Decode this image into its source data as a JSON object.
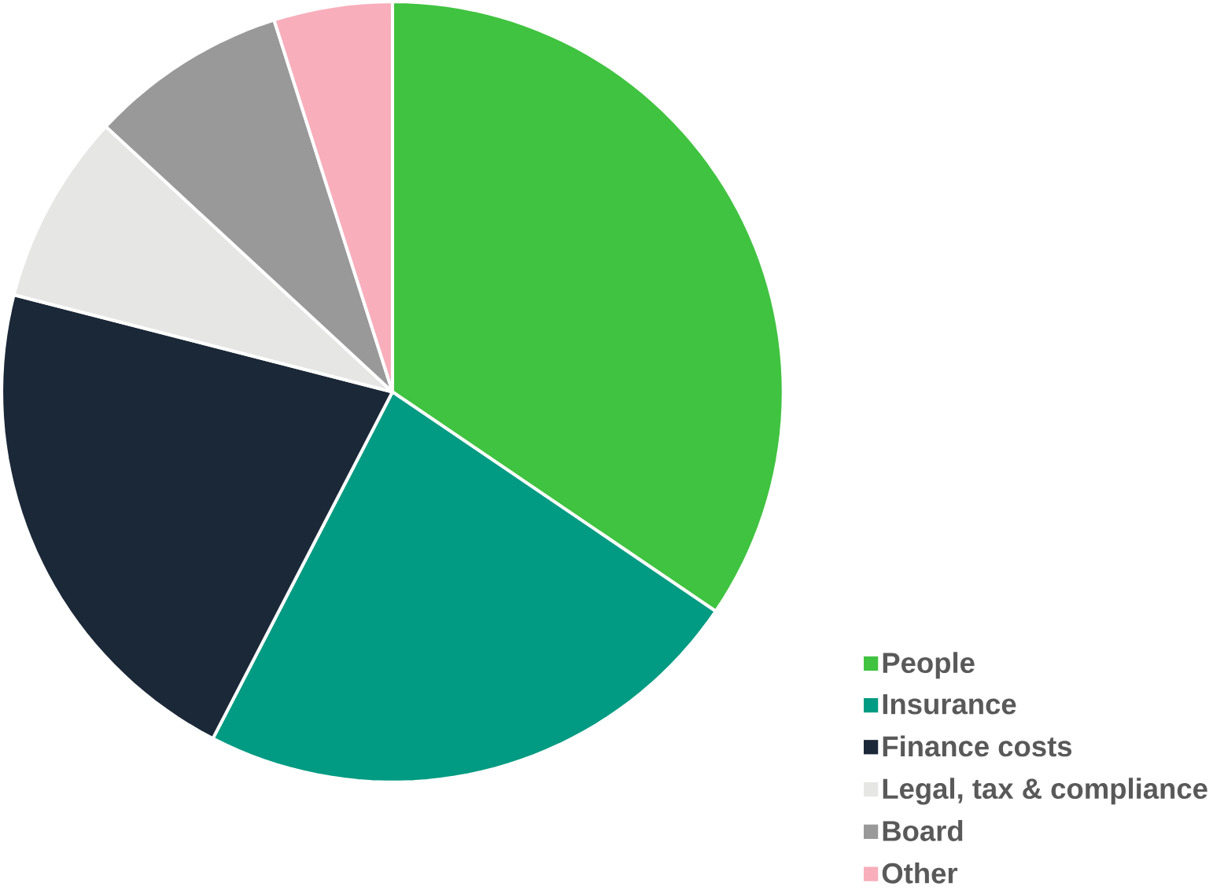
{
  "chart_data": {
    "type": "pie",
    "categories": [
      "People",
      "Insurance",
      "Finance costs",
      "Legal, tax & compliance",
      "Board",
      "Other"
    ],
    "values": [
      34.5,
      23.1,
      21.4,
      7.9,
      8.2,
      4.9
    ],
    "colors": [
      "#40c340",
      "#009b82",
      "#1b2838",
      "#e6e6e4",
      "#999999",
      "#f8aebb"
    ],
    "legend": "bottom right"
  }
}
